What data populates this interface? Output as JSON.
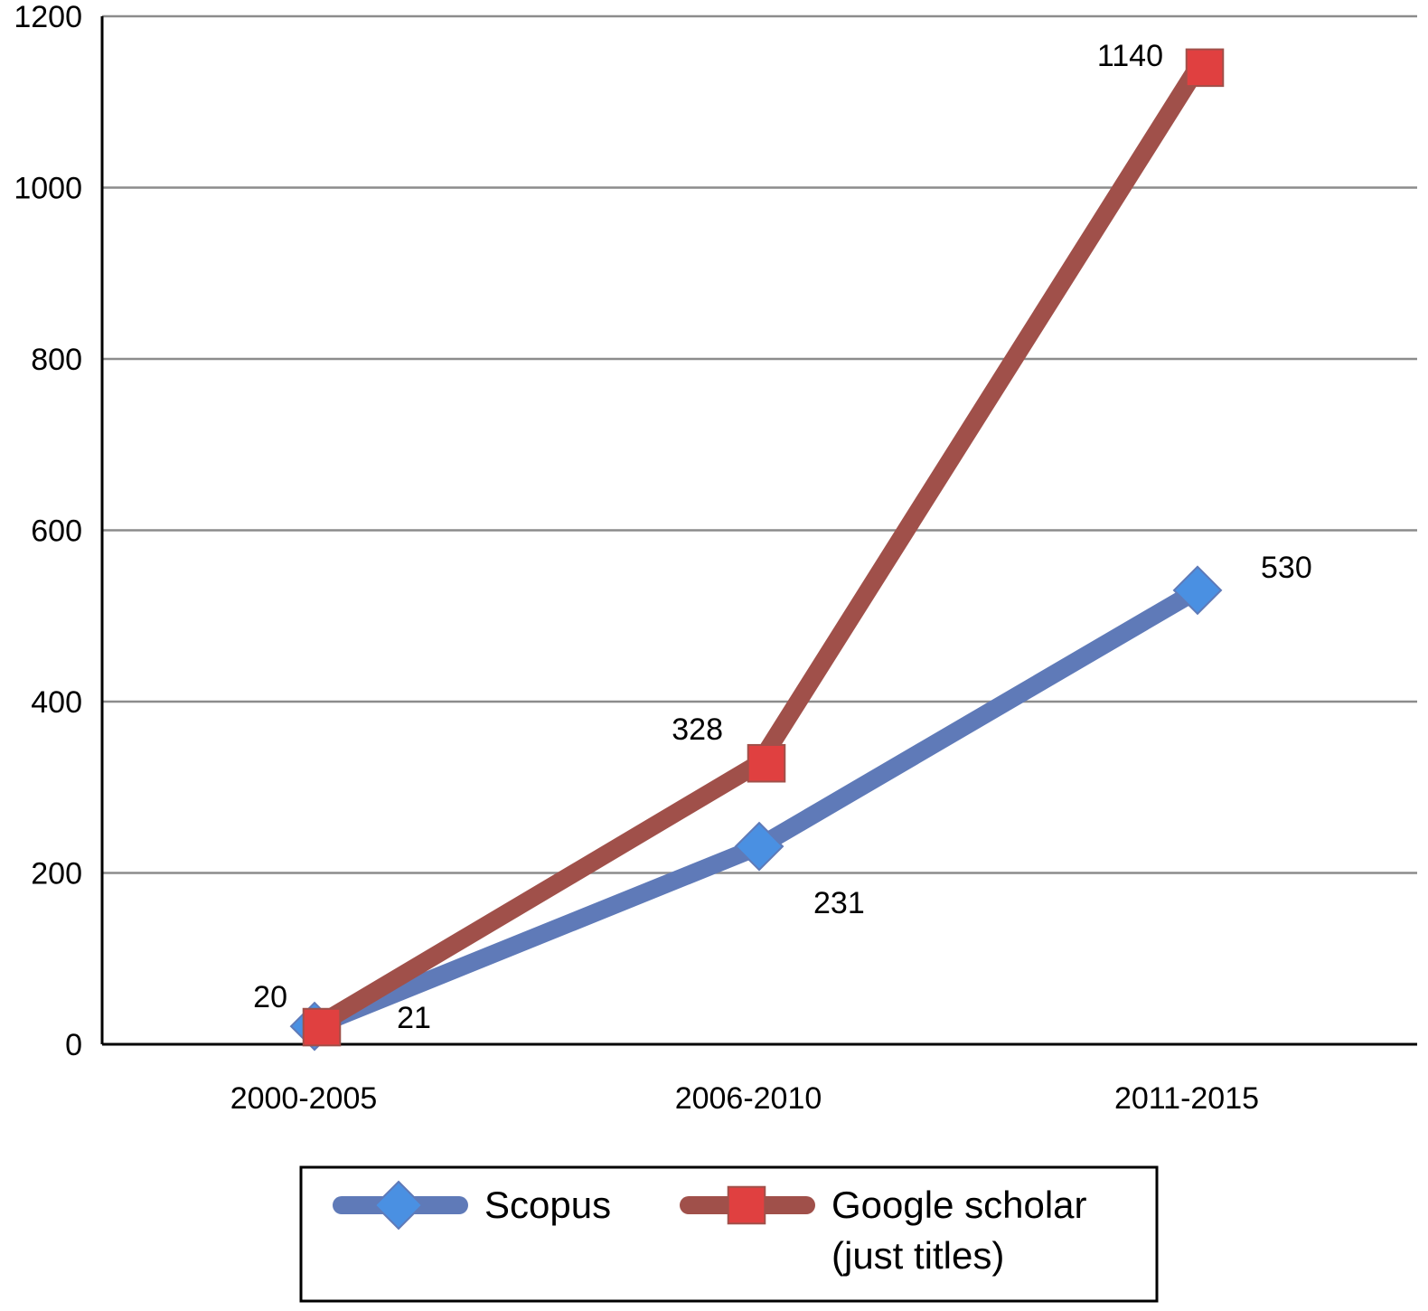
{
  "chart_data": {
    "type": "line",
    "categories": [
      "2000-2005",
      "2006-2010",
      "2011-2015"
    ],
    "series": [
      {
        "name": "Scopus",
        "values": [
          21,
          231,
          530
        ],
        "color": "#5f7ab8",
        "marker": "diamond",
        "marker_color": "#4a90e2"
      },
      {
        "name": "Google scholar (just titles)",
        "name_lines": [
          "Google scholar",
          "(just titles)"
        ],
        "values": [
          20,
          328,
          1140
        ],
        "color": "#a0504a",
        "marker": "square",
        "marker_color": "#e04040"
      }
    ],
    "y_ticks": [
      "0",
      "200",
      "400",
      "600",
      "800",
      "1000",
      "1200"
    ],
    "ylim": [
      0,
      1200
    ],
    "grid": true,
    "legend_position": "bottom",
    "title": "",
    "xlabel": "",
    "ylabel": ""
  }
}
